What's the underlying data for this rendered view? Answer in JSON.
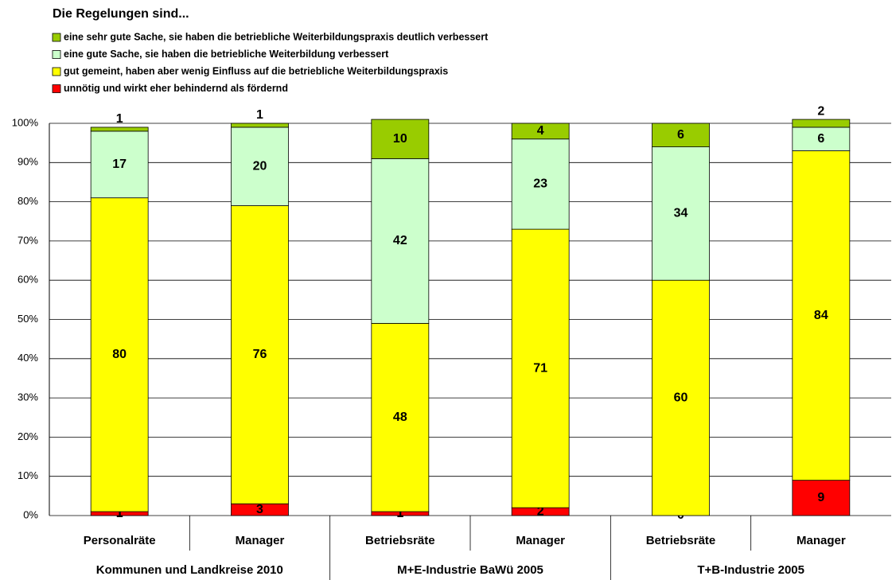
{
  "chart_data": {
    "type": "stacked_bar",
    "title": "Die Regelungen sind...",
    "categories": [
      "Personalräte",
      "Manager",
      "Betriebsräte",
      "Manager",
      "Betriebsräte",
      "Manager"
    ],
    "groups": [
      "Kommunen und Landkreise 2010",
      "M+E-Industrie BaWü 2005",
      "T+B-Industrie 2005"
    ],
    "series": [
      {
        "name": "unnötig und wirkt eher behindernd als fördernd",
        "color": "#ff0000",
        "values": [
          1,
          3,
          1,
          2,
          0,
          9
        ]
      },
      {
        "name": "gut gemeint, haben aber wenig Einfluss auf die betriebliche Weiterbildungspraxis",
        "color": "#ffff00",
        "values": [
          80,
          76,
          48,
          71,
          60,
          84
        ]
      },
      {
        "name": "eine gute Sache, sie haben die betriebliche Weiterbildung verbessert",
        "color": "#ccffcc",
        "values": [
          17,
          20,
          42,
          23,
          34,
          6
        ]
      },
      {
        "name": "eine sehr gute Sache, sie haben die betriebliche Weiterbildungspraxis deutlich verbessert",
        "color": "#99cc00",
        "values": [
          1,
          1,
          10,
          4,
          6,
          2
        ]
      }
    ],
    "ylim": [
      0,
      100
    ],
    "yticks": [
      {
        "value": 0,
        "label": "0%"
      },
      {
        "value": 10,
        "label": "10%"
      },
      {
        "value": 20,
        "label": "20%"
      },
      {
        "value": 30,
        "label": "30%"
      },
      {
        "value": 40,
        "label": "40%"
      },
      {
        "value": 50,
        "label": "50%"
      },
      {
        "value": 60,
        "label": "60%"
      },
      {
        "value": 70,
        "label": "70%"
      },
      {
        "value": 80,
        "label": "80%"
      },
      {
        "value": 90,
        "label": "90%"
      },
      {
        "value": 100,
        "label": "100%"
      }
    ],
    "grid": true
  }
}
